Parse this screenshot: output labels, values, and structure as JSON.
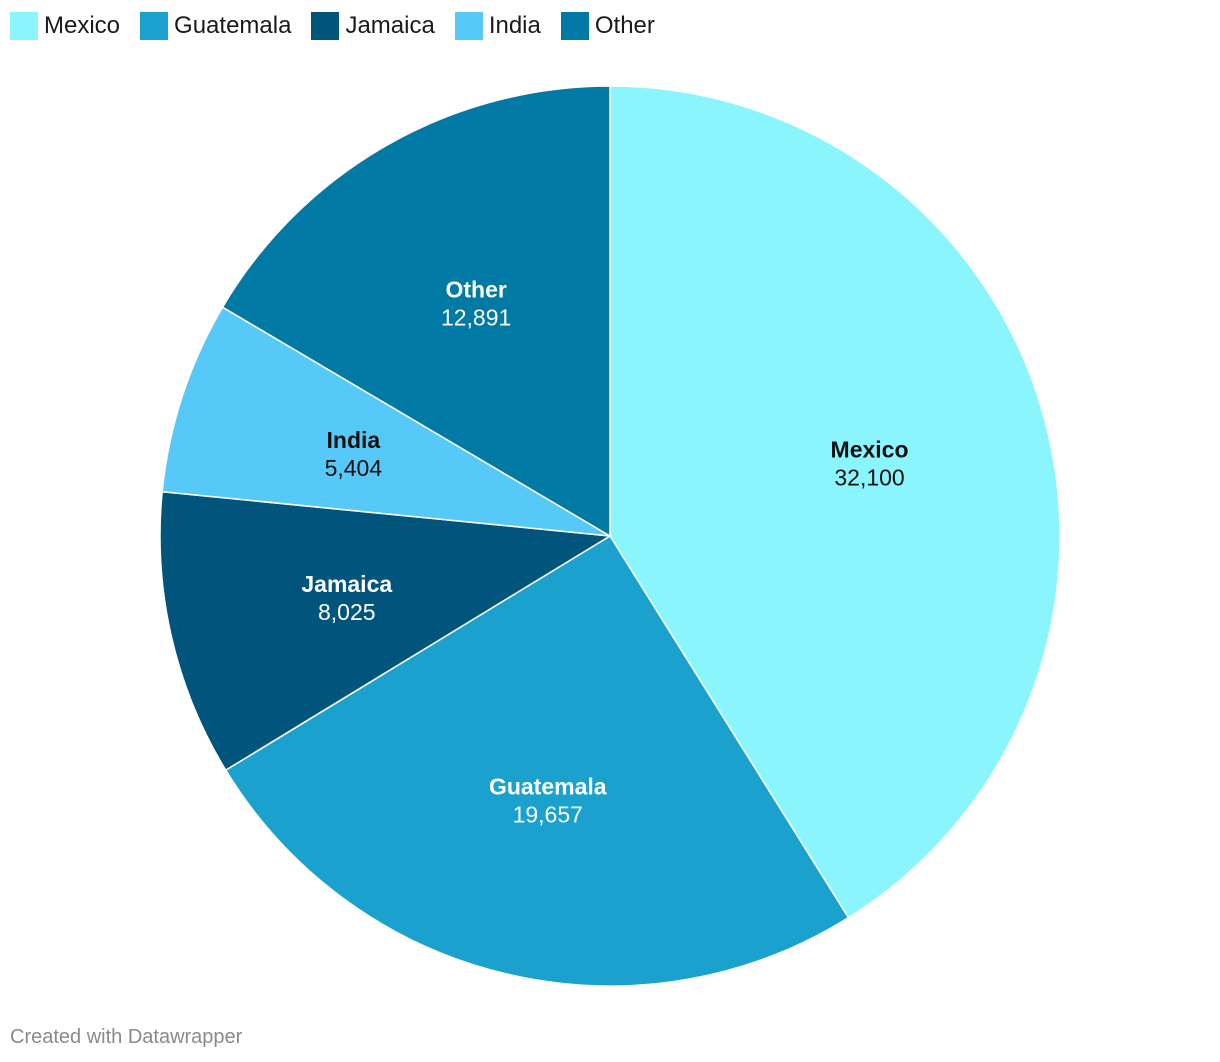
{
  "chart_data": {
    "type": "pie",
    "slices": [
      {
        "label": "Mexico",
        "value": 32100,
        "value_label": "32,100",
        "color": "#8af5fd",
        "text_color": "#111111"
      },
      {
        "label": "Guatemala",
        "value": 19657,
        "value_label": "19,657",
        "color": "#1aa1cd",
        "text_color": "#ffffff"
      },
      {
        "label": "Jamaica",
        "value": 8025,
        "value_label": "8,025",
        "color": "#01557d",
        "text_color": "#ffffff"
      },
      {
        "label": "India",
        "value": 5404,
        "value_label": "5,404",
        "color": "#57c9f8",
        "text_color": "#111111"
      },
      {
        "label": "Other",
        "value": 12891,
        "value_label": "12,891",
        "color": "#0079a4",
        "text_color": "#ffffff"
      }
    ],
    "start_angle": "12 o'clock",
    "direction": "clockwise",
    "legend_position": "top-left"
  },
  "legend": {
    "items": [
      {
        "label": "Mexico",
        "color": "#8af5fd"
      },
      {
        "label": "Guatemala",
        "color": "#1aa1cd"
      },
      {
        "label": "Jamaica",
        "color": "#01557d"
      },
      {
        "label": "India",
        "color": "#57c9f8"
      },
      {
        "label": "Other",
        "color": "#0079a4"
      }
    ]
  },
  "footer": {
    "credit": "Created with Datawrapper"
  }
}
